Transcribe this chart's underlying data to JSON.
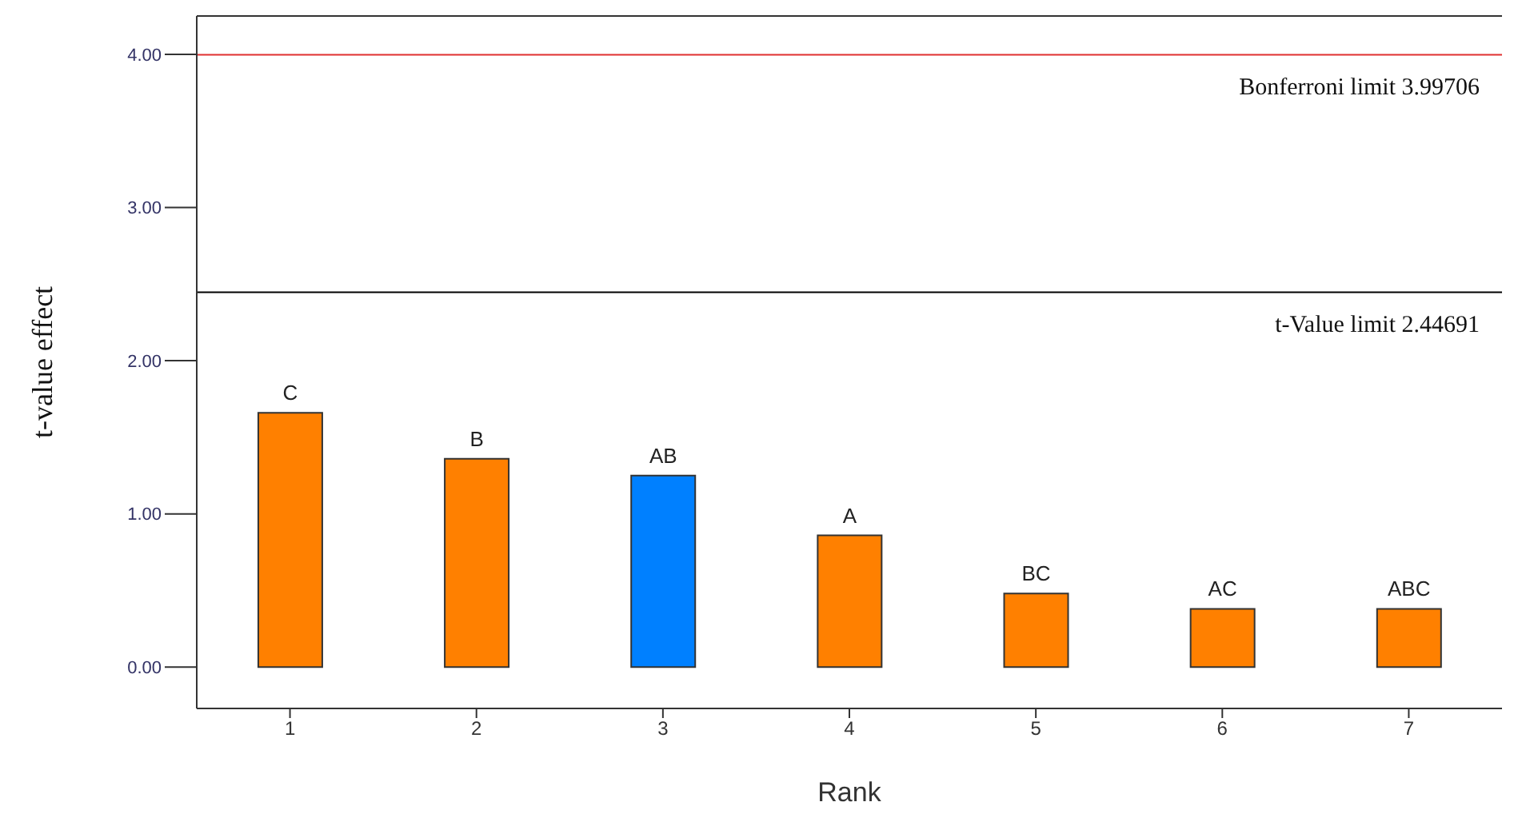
{
  "chart_data": {
    "type": "bar",
    "xlabel": "Rank",
    "ylabel": "t-value effect",
    "categories": [
      "1",
      "2",
      "3",
      "4",
      "5",
      "6",
      "7"
    ],
    "values": [
      1.66,
      1.36,
      1.25,
      0.86,
      0.48,
      0.38,
      0.38
    ],
    "colors": [
      "#ff8000",
      "#ff8000",
      "#0080ff",
      "#ff8000",
      "#ff8000",
      "#ff8000",
      "#ff8000"
    ],
    "value_labels": [
      "C",
      "B",
      "AB",
      "A",
      "BC",
      "AC",
      "ABC"
    ],
    "ylim": [
      -0.27,
      4.25
    ],
    "yticks": [
      {
        "value": 0,
        "label": "0.00"
      },
      {
        "value": 1,
        "label": "1.00"
      },
      {
        "value": 2,
        "label": "2.00"
      },
      {
        "value": 3,
        "label": "3.00"
      },
      {
        "value": 4,
        "label": "4.00"
      }
    ],
    "ref_lines": [
      {
        "axis": "y",
        "value": 3.99706,
        "label": "Bonferroni limit 3.99706",
        "color": "#e03030"
      },
      {
        "axis": "y",
        "value": 2.44691,
        "label": "t-Value limit 2.44691",
        "color": "#000000"
      }
    ]
  }
}
